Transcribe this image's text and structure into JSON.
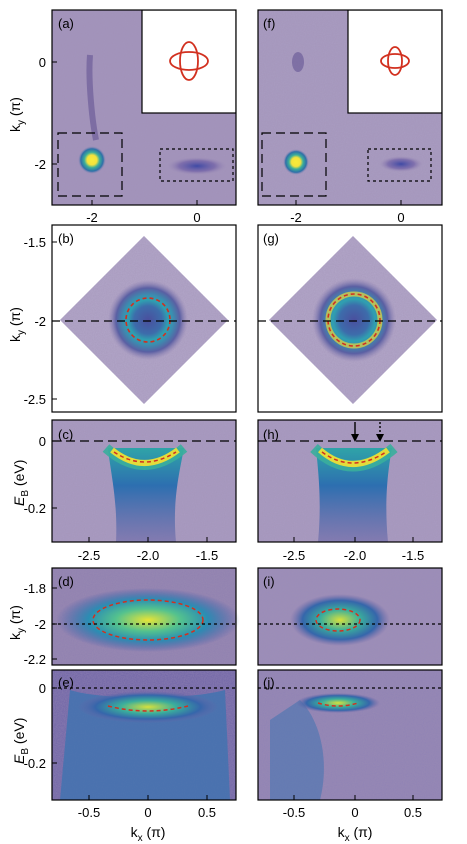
{
  "figure": {
    "panel_labels": [
      "(a)",
      "(b)",
      "(c)",
      "(d)",
      "(e)",
      "(f)",
      "(g)",
      "(h)",
      "(i)",
      "(j)"
    ],
    "axis_labels": {
      "ky_main": "k",
      "ky_sub": "y",
      "ky_unit": " (π)",
      "eb_main": "E",
      "eb_sub": "B",
      "eb_unit": " (eV)",
      "kx_main": "k",
      "kx_sub": "x",
      "kx_unit": " (π)"
    },
    "ticks": {
      "a_y": [
        "0",
        "-2"
      ],
      "a_x": [
        "-2",
        "0"
      ],
      "b_y": [
        "-1.5",
        "-2",
        "-2.5"
      ],
      "c_y": [
        "0",
        "-0.2"
      ],
      "c_x": [
        "-2.5",
        "-2.0",
        "-1.5"
      ],
      "d_y": [
        "-1.8",
        "-2",
        "-2.2"
      ],
      "e_y": [
        "0",
        "-0.2"
      ],
      "e_x": [
        "-0.5",
        "0",
        "0.5"
      ]
    },
    "colors": {
      "background_intensity": "#8a7aa8",
      "high_intensity": "#f4ea3c",
      "mid_intensity": "#2c9fb0",
      "contour": "#d2301f",
      "frame": "#000000"
    }
  }
}
